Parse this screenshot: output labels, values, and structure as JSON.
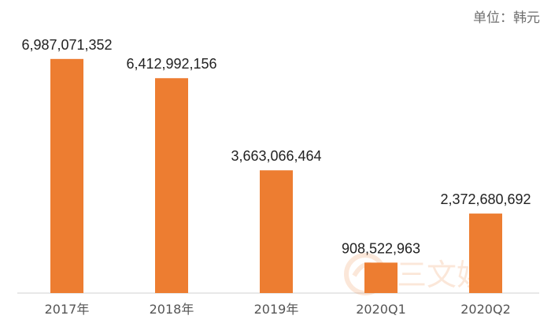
{
  "unit_label": "单位：韩元",
  "watermark_text": "三文娱",
  "chart_data": {
    "type": "bar",
    "categories": [
      "2017年",
      "2018年",
      "2019年",
      "2020Q1",
      "2020Q2"
    ],
    "values": [
      6987071352,
      6412992156,
      3663066464,
      908522963,
      2372680692
    ],
    "data_labels": [
      "6,987,071,352",
      "6,412,992,156",
      "3,663,066,464",
      "908,522,963",
      "2,372,680,692"
    ],
    "title": "",
    "xlabel": "",
    "ylabel": "",
    "ylim": [
      0,
      7900000000
    ],
    "bar_color": "#ed7d31",
    "grid": false,
    "legend": "none"
  }
}
